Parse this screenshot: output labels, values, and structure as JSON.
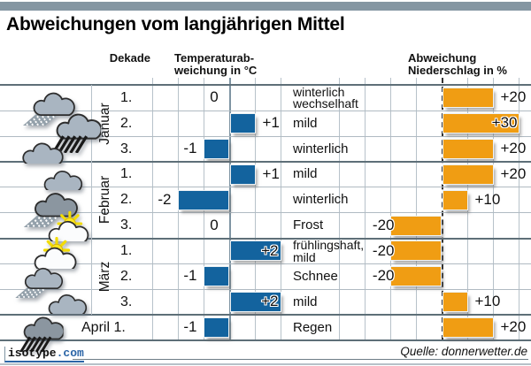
{
  "title": "Abweichungen vom langjährigen Mittel",
  "headers": {
    "decade": "Dekade",
    "temperature": "Temperaturab-\nweichung in °C",
    "precipitation": "Abweichung\nNiederschlag in %"
  },
  "footer": {
    "logo_name": "isotype",
    "logo_tld": ".com",
    "source": "Quelle: donnerwetter.de"
  },
  "colors": {
    "top_bar": "#8496a2",
    "temp_bar": "#13639e",
    "precip_bar": "#f09d13",
    "grid_light": "#b7c2ca",
    "grid_heavy": "#5e6f78",
    "row_line": "#b0bac2",
    "temp_zero_axis": "#7f95a3",
    "precip_zero_axis": "#333333",
    "cloud_light": "#a9b5c1",
    "cloud_dark": "#8b96a0",
    "sun": "#ffe81c"
  },
  "chart_data": {
    "type": "bar",
    "orientation": "horizontal",
    "title": "Abweichungen vom langjährigen Mittel",
    "temp_axis": {
      "label": "Temperaturab­weichung in °C",
      "unit": "°C",
      "range": [
        -3,
        2
      ],
      "gridline_step": 1,
      "zero_axis": "solid"
    },
    "precip_axis": {
      "label": "Abweichung Niederschlag in %",
      "unit": "%",
      "range": [
        -40,
        30
      ],
      "gridline_step": 10,
      "zero_axis": "dashed"
    },
    "months": [
      {
        "name": "Januar",
        "row_span": [
          0,
          2
        ]
      },
      {
        "name": "Februar",
        "row_span": [
          3,
          5
        ]
      },
      {
        "name": "März",
        "row_span": [
          6,
          8
        ]
      },
      {
        "name": "April",
        "row_span": [
          9,
          9
        ],
        "inline": true
      }
    ],
    "rows": [
      {
        "month": "Januar",
        "decade": "1.",
        "icon": "sleet-shower-cloud-icon",
        "temp_c": 0,
        "temp_label": "0",
        "weather": "winterlich\nwechselhaft",
        "precip_pct": 20,
        "precip_label": "+20"
      },
      {
        "month": "Januar",
        "decade": "2.",
        "icon": "heavy-rain-cloud-icon",
        "temp_c": 1,
        "temp_label": "+1",
        "weather": "mild",
        "precip_pct": 30,
        "precip_label": "+30"
      },
      {
        "month": "Januar",
        "decade": "3.",
        "icon": "cloud-icon",
        "temp_c": -1,
        "temp_label": "-1",
        "weather": "winterlich",
        "precip_pct": 20,
        "precip_label": "+20"
      },
      {
        "month": "Februar",
        "decade": "1.",
        "icon": "cloud-icon",
        "temp_c": 1,
        "temp_label": "+1",
        "weather": "mild",
        "precip_pct": 20,
        "precip_label": "+20"
      },
      {
        "month": "Februar",
        "decade": "2.",
        "icon": "snow-shower-cloud-icon",
        "temp_c": -2,
        "temp_label": "-2",
        "weather": "winterlich",
        "precip_pct": 10,
        "precip_label": "+10"
      },
      {
        "month": "Februar",
        "decade": "3.",
        "icon": "sun-cloud-icon",
        "temp_c": 0,
        "temp_label": "0",
        "weather": "Frost",
        "precip_pct": -20,
        "precip_label": "-20"
      },
      {
        "month": "März",
        "decade": "1.",
        "icon": "sun-cloud-icon",
        "temp_c": 2,
        "temp_label": "+2",
        "weather": "frühlingshaft,\nmild",
        "precip_pct": -20,
        "precip_label": "-20"
      },
      {
        "month": "März",
        "decade": "2.",
        "icon": "snow-shower-cloud-icon",
        "temp_c": -1,
        "temp_label": "-1",
        "weather": "Schnee",
        "precip_pct": -20,
        "precip_label": "-20"
      },
      {
        "month": "März",
        "decade": "3.",
        "icon": "cloud-icon",
        "temp_c": 2,
        "temp_label": "+2",
        "weather": "mild",
        "precip_pct": 10,
        "precip_label": "+10"
      },
      {
        "month": "April",
        "decade": "1.",
        "decade_inline": "April 1.",
        "icon": "heavy-rain-cloud-icon",
        "temp_c": -1,
        "temp_label": "-1",
        "weather": "Regen",
        "precip_pct": 20,
        "precip_label": "+20"
      }
    ]
  }
}
